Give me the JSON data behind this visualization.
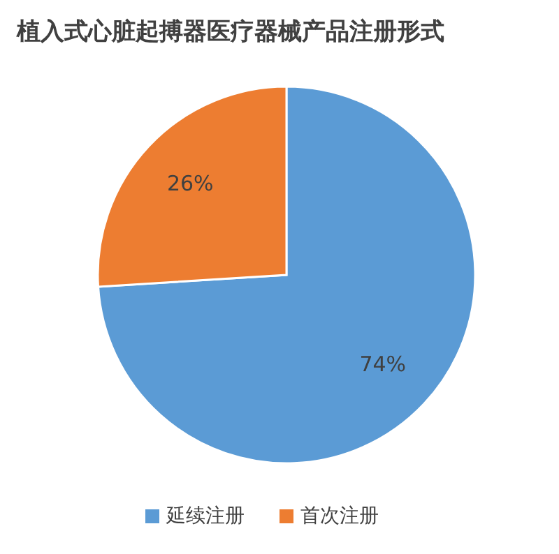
{
  "chart_data": {
    "type": "pie",
    "title": "植入式心脏起搏器医疗器械产品注册形式",
    "categories": [
      "延续注册",
      "首次注册"
    ],
    "values": [
      74,
      26
    ],
    "colors": [
      "#5b9bd5",
      "#ed7d31"
    ],
    "value_labels": [
      "74%",
      "26%"
    ],
    "legend": "bottom"
  }
}
